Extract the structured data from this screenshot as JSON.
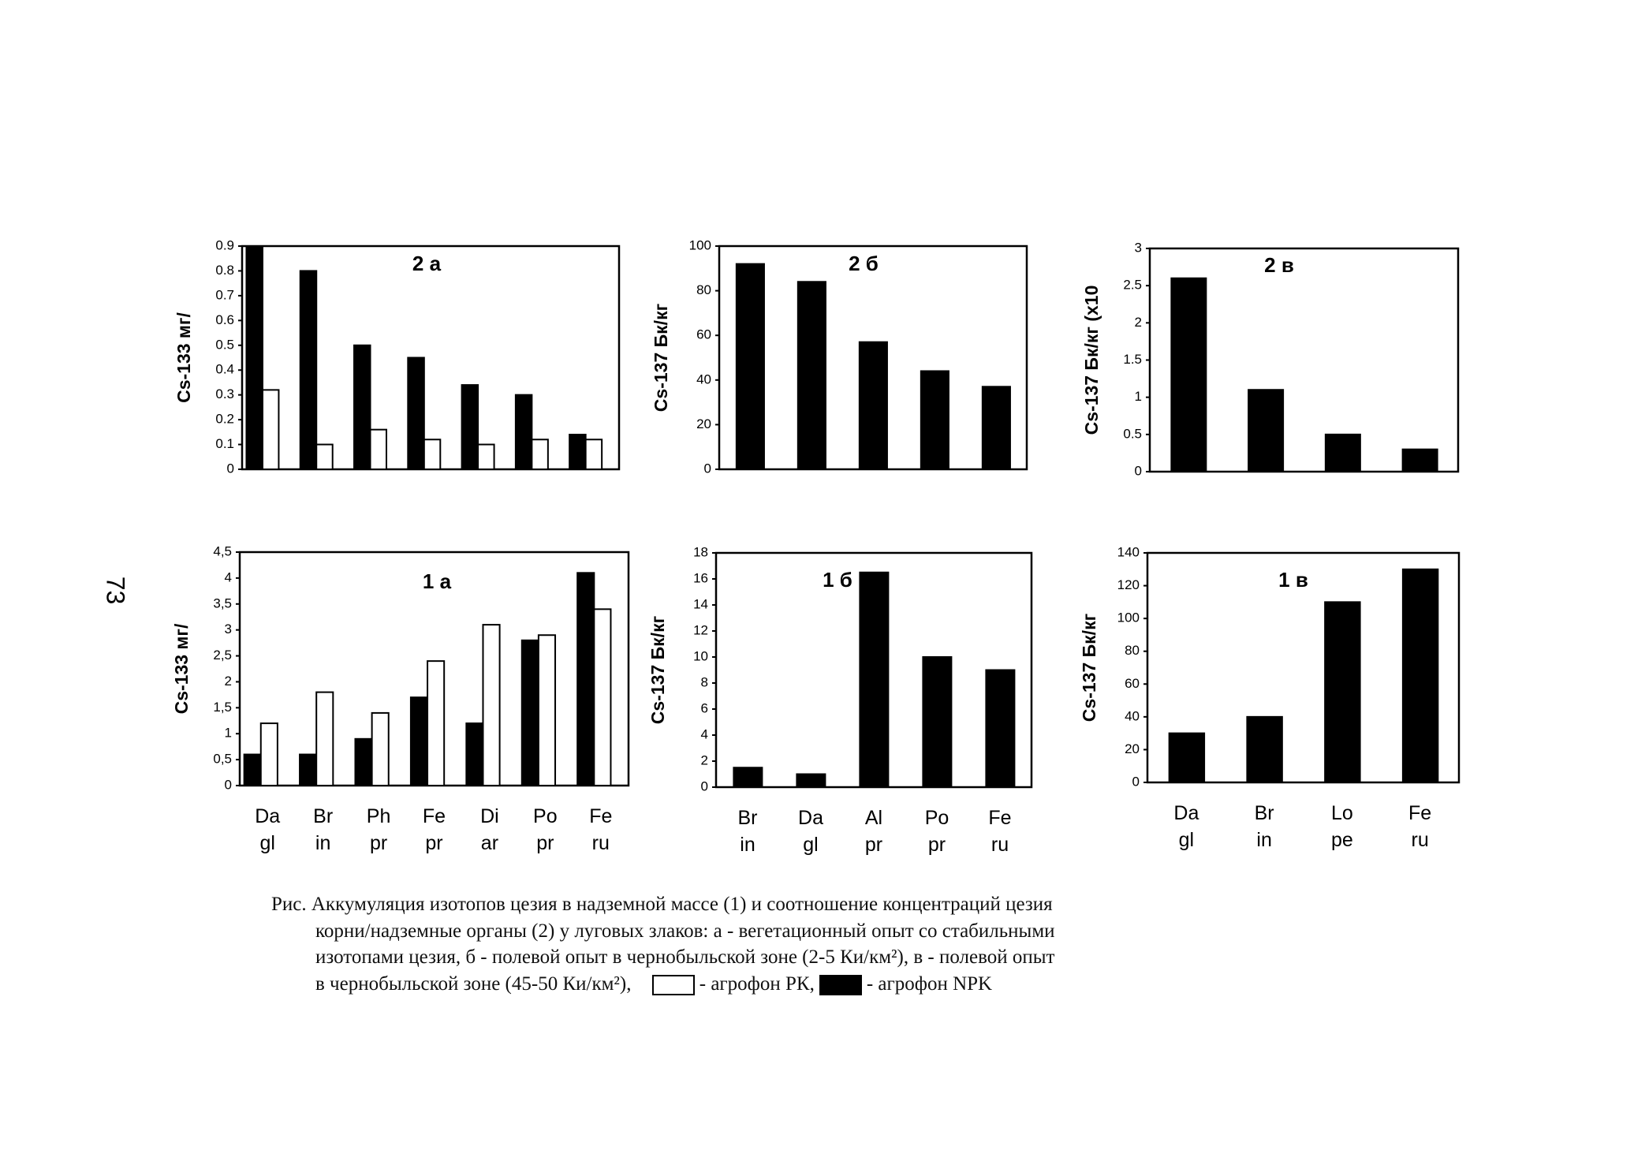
{
  "page_number": "73",
  "chart_data": [
    {
      "type": "bar",
      "title": "2 а",
      "ylabel": "Cs-133 мг/",
      "ylim": [
        0,
        0.9
      ],
      "yticks": [
        0,
        0.1,
        0.2,
        0.3,
        0.4,
        0.5,
        0.6,
        0.7,
        0.8,
        0.9
      ],
      "series": [
        {
          "color": "#000000",
          "values": [
            0.9,
            0.8,
            0.5,
            0.45,
            0.34,
            0.3,
            0.14
          ]
        },
        {
          "color": "#ffffff",
          "values": [
            0.32,
            0.1,
            0.16,
            0.12,
            0.1,
            0.12,
            0.12
          ]
        }
      ]
    },
    {
      "type": "bar",
      "title": "2 б",
      "ylabel": "Cs-137 Бк/кг",
      "ylim": [
        0,
        100
      ],
      "yticks": [
        0,
        20,
        40,
        60,
        80,
        100
      ],
      "color": "#000000",
      "values": [
        92,
        84,
        57,
        44,
        37
      ]
    },
    {
      "type": "bar",
      "title": "2 в",
      "ylabel": "Cs-137 Бк/кг (x10",
      "ylim": [
        0,
        3
      ],
      "yticks": [
        0,
        0.5,
        1,
        1.5,
        2,
        2.5,
        3
      ],
      "color": "#000000",
      "values": [
        2.6,
        1.1,
        0.5,
        0.3
      ]
    },
    {
      "type": "bar",
      "title": "1 а",
      "ylabel": "Cs-133 мг/",
      "ylim": [
        0,
        4.5
      ],
      "yticks": [
        0,
        {
          "value": 0.5,
          "label": "0,5"
        },
        1,
        {
          "value": 1.5,
          "label": "1,5"
        },
        2,
        {
          "value": 2.5,
          "label": "2,5"
        },
        3,
        {
          "value": 3.5,
          "label": "3,5"
        },
        4,
        {
          "value": 4.5,
          "label": "4,5"
        }
      ],
      "categories": [
        "Da\ngl",
        "Br\nin",
        "Ph\npr",
        "Fe\npr",
        "Di\nar",
        "Po\npr",
        "Fe\nru"
      ],
      "series": [
        {
          "name": "агрофон NPK",
          "color": "#000000",
          "values": [
            0.6,
            0.6,
            0.9,
            1.7,
            1.2,
            2.8,
            4.1
          ]
        },
        {
          "name": "агрофон РК",
          "color": "#ffffff",
          "values": [
            1.2,
            1.8,
            1.4,
            2.4,
            3.1,
            2.9,
            3.4
          ]
        }
      ]
    },
    {
      "type": "bar",
      "title": "1 б",
      "ylabel": "Cs-137 Бк/кг",
      "ylim": [
        0,
        18
      ],
      "yticks": [
        0,
        2,
        4,
        6,
        8,
        10,
        12,
        14,
        16,
        18
      ],
      "categories": [
        "Br\nin",
        "Da\ngl",
        "Al\npr",
        "Po\npr",
        "Fe\nru"
      ],
      "color": "#000000",
      "values": [
        1.5,
        1,
        16.5,
        10,
        9
      ]
    },
    {
      "type": "bar",
      "title": "1 в",
      "ylabel": "Cs-137 Бк/кг",
      "ylim": [
        0,
        140
      ],
      "yticks": [
        0,
        20,
        40,
        60,
        80,
        100,
        120,
        140
      ],
      "categories": [
        "Da\ngl",
        "Br\nin",
        "Lo\npe",
        "Fe\nru"
      ],
      "color": "#000000",
      "values": [
        30,
        40,
        110,
        130
      ]
    }
  ],
  "caption": [
    "Рис. Аккумуляция изотопов цезия в надземной массе (1) и соотношение концентраций цезия",
    "корни/надземные органы (2) у луговых злаков: а - вегетационный опыт со стабильными",
    "изотопами цезия, б - полевой опыт в чернобыльской зоне (2-5 Ки/км²), в - полевой опыт",
    "в чернобыльской зоне (45-50 Ки/км²),"
  ]
}
